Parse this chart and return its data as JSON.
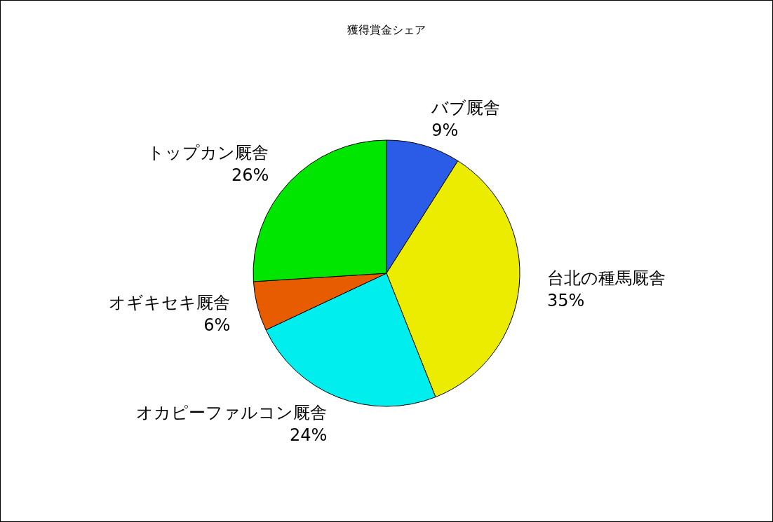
{
  "chart_data": {
    "type": "pie",
    "title": "獲得賞金シェア",
    "categories": [
      "バブ厩舎",
      "台北の種馬厩舎",
      "オカピーファルコン厩舎",
      "オギキセキ厩舎",
      "トップカン厩舎"
    ],
    "values": [
      9,
      35,
      24,
      6,
      26
    ],
    "colors": [
      "#2b5ce8",
      "#ecec00",
      "#00eeee",
      "#e85c00",
      "#00e600"
    ],
    "value_labels": [
      "9%",
      "35%",
      "24%",
      "6%",
      "26%"
    ],
    "legend": false
  }
}
